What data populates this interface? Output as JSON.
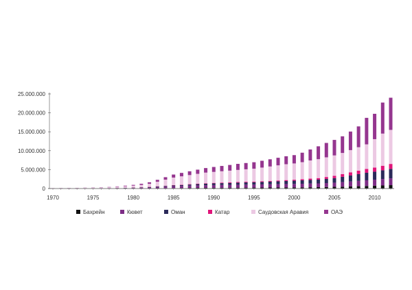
{
  "chart_data": {
    "type": "bar",
    "stacked": true,
    "title": "",
    "xlabel": "",
    "ylabel": "",
    "ylim": [
      0,
      25000000
    ],
    "yticks": [
      "0",
      "5.000.000",
      "10.000.000",
      "15.000.000",
      "20.000.000",
      "25.000.000"
    ],
    "ytick_values": [
      0,
      5000000,
      10000000,
      15000000,
      20000000,
      25000000
    ],
    "xtick_labels": [
      "1970",
      "1975",
      "1980",
      "1985",
      "1990",
      "1995",
      "2000",
      "2005",
      "2010"
    ],
    "grid": false,
    "legend_position": "bottom",
    "categories": [
      1970,
      1971,
      1972,
      1973,
      1974,
      1975,
      1976,
      1977,
      1978,
      1979,
      1980,
      1981,
      1982,
      1983,
      1984,
      1985,
      1986,
      1987,
      1988,
      1989,
      1990,
      1991,
      1992,
      1993,
      1994,
      1995,
      1996,
      1997,
      1998,
      1999,
      2000,
      2001,
      2002,
      2003,
      2004,
      2005,
      2006,
      2007,
      2008,
      2009,
      2010,
      2011,
      2012
    ],
    "series": [
      {
        "name": "Бахрейн",
        "color": "#111111",
        "values": [
          10000,
          12000,
          14000,
          16000,
          18000,
          20000,
          25000,
          30000,
          40000,
          50000,
          60000,
          70000,
          80000,
          90000,
          100000,
          120000,
          140000,
          160000,
          180000,
          190000,
          200000,
          210000,
          220000,
          230000,
          240000,
          250000,
          260000,
          270000,
          280000,
          290000,
          300000,
          320000,
          340000,
          360000,
          400000,
          450000,
          500000,
          560000,
          620000,
          680000,
          750000,
          820000,
          900000
        ]
      },
      {
        "name": "Кювет",
        "color": "#7d2d86",
        "values": [
          20000,
          22000,
          25000,
          28000,
          30000,
          35000,
          40000,
          50000,
          60000,
          80000,
          100000,
          150000,
          200000,
          300000,
          400000,
          500000,
          550000,
          600000,
          650000,
          700000,
          720000,
          740000,
          760000,
          780000,
          800000,
          820000,
          840000,
          860000,
          880000,
          900000,
          920000,
          950000,
          980000,
          1000000,
          1050000,
          1100000,
          1200000,
          1300000,
          1400000,
          1500000,
          1600000,
          1700000,
          1800000
        ]
      },
      {
        "name": "Оман",
        "color": "#2b2a5a",
        "values": [
          10000,
          12000,
          14000,
          16000,
          18000,
          20000,
          30000,
          40000,
          50000,
          60000,
          80000,
          100000,
          120000,
          150000,
          180000,
          200000,
          250000,
          300000,
          350000,
          400000,
          450000,
          480000,
          500000,
          550000,
          580000,
          600000,
          650000,
          700000,
          750000,
          800000,
          850000,
          900000,
          950000,
          1000000,
          1100000,
          1200000,
          1400000,
          1600000,
          1800000,
          2000000,
          2100000,
          2300000,
          2500000
        ]
      },
      {
        "name": "Катар",
        "color": "#e0157a",
        "values": [
          5000,
          6000,
          7000,
          8000,
          9000,
          10000,
          12000,
          15000,
          20000,
          25000,
          30000,
          40000,
          50000,
          60000,
          70000,
          80000,
          90000,
          100000,
          110000,
          120000,
          130000,
          140000,
          150000,
          160000,
          170000,
          180000,
          190000,
          200000,
          220000,
          240000,
          260000,
          300000,
          350000,
          400000,
          500000,
          600000,
          700000,
          800000,
          900000,
          1000000,
          1100000,
          1200000,
          1300000
        ]
      },
      {
        "name": "Саудовская Аравия",
        "color": "#ecc9e3",
        "values": [
          50000,
          60000,
          70000,
          80000,
          100000,
          120000,
          150000,
          200000,
          300000,
          400000,
          500000,
          600000,
          800000,
          1200000,
          1600000,
          2000000,
          2200000,
          2400000,
          2600000,
          2800000,
          2900000,
          3000000,
          3100000,
          3200000,
          3300000,
          3400000,
          3600000,
          3800000,
          4000000,
          4200000,
          4300000,
          4500000,
          4800000,
          5000000,
          5200000,
          5400000,
          5600000,
          5900000,
          6200000,
          6500000,
          7500000,
          8500000,
          9000000
        ]
      },
      {
        "name": "ОАЭ",
        "color": "#95368f",
        "values": [
          20000,
          25000,
          30000,
          35000,
          40000,
          50000,
          60000,
          80000,
          100000,
          150000,
          200000,
          300000,
          400000,
          500000,
          650000,
          800000,
          900000,
          1000000,
          1100000,
          1200000,
          1300000,
          1400000,
          1500000,
          1600000,
          1650000,
          1700000,
          1800000,
          1900000,
          2000000,
          2100000,
          2200000,
          2500000,
          2900000,
          3400000,
          3800000,
          4100000,
          4400000,
          4900000,
          5500000,
          7000000,
          6700000,
          8200000,
          8500000
        ]
      }
    ]
  }
}
